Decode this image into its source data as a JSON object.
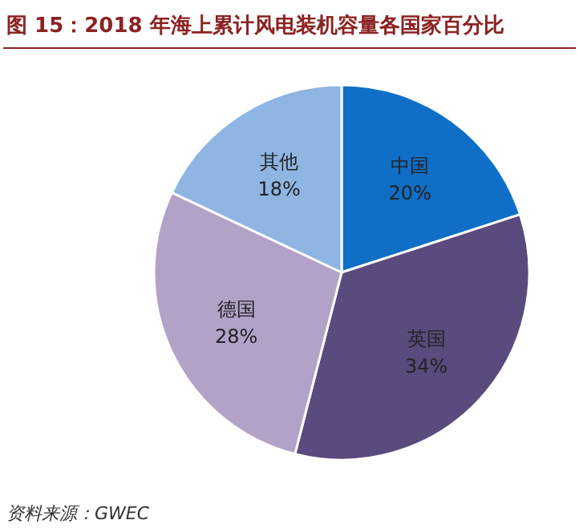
{
  "chart_data": {
    "type": "pie",
    "title": "图 15：2018 年海上累计风电装机容量各国家百分比",
    "categories": [
      "中国",
      "英国",
      "德国",
      "其他"
    ],
    "values": [
      20,
      34,
      28,
      18
    ],
    "value_labels": [
      "20%",
      "34%",
      "28%",
      "18%"
    ],
    "colors": [
      "#0f6fc6",
      "#5b4a7d",
      "#b3a2c8",
      "#8fb5e3"
    ],
    "annotations": [
      "资料来源：GWEC"
    ]
  }
}
